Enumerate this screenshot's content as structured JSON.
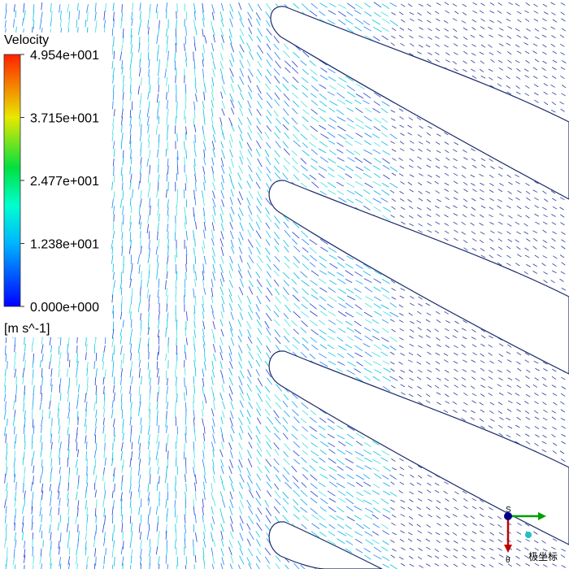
{
  "legend": {
    "title": "Velocity",
    "unit": "[m s^-1]",
    "ticks": [
      {
        "value": 49.54,
        "label": "4.954e+001"
      },
      {
        "value": 37.15,
        "label": "3.715e+001"
      },
      {
        "value": 24.77,
        "label": "2.477e+001"
      },
      {
        "value": 12.38,
        "label": "1.238e+001"
      },
      {
        "value": 0,
        "label": "0.000e+000"
      }
    ]
  },
  "triad": {
    "axis_s": "S",
    "axis_theta": "θ",
    "frame": "极坐标"
  }
}
